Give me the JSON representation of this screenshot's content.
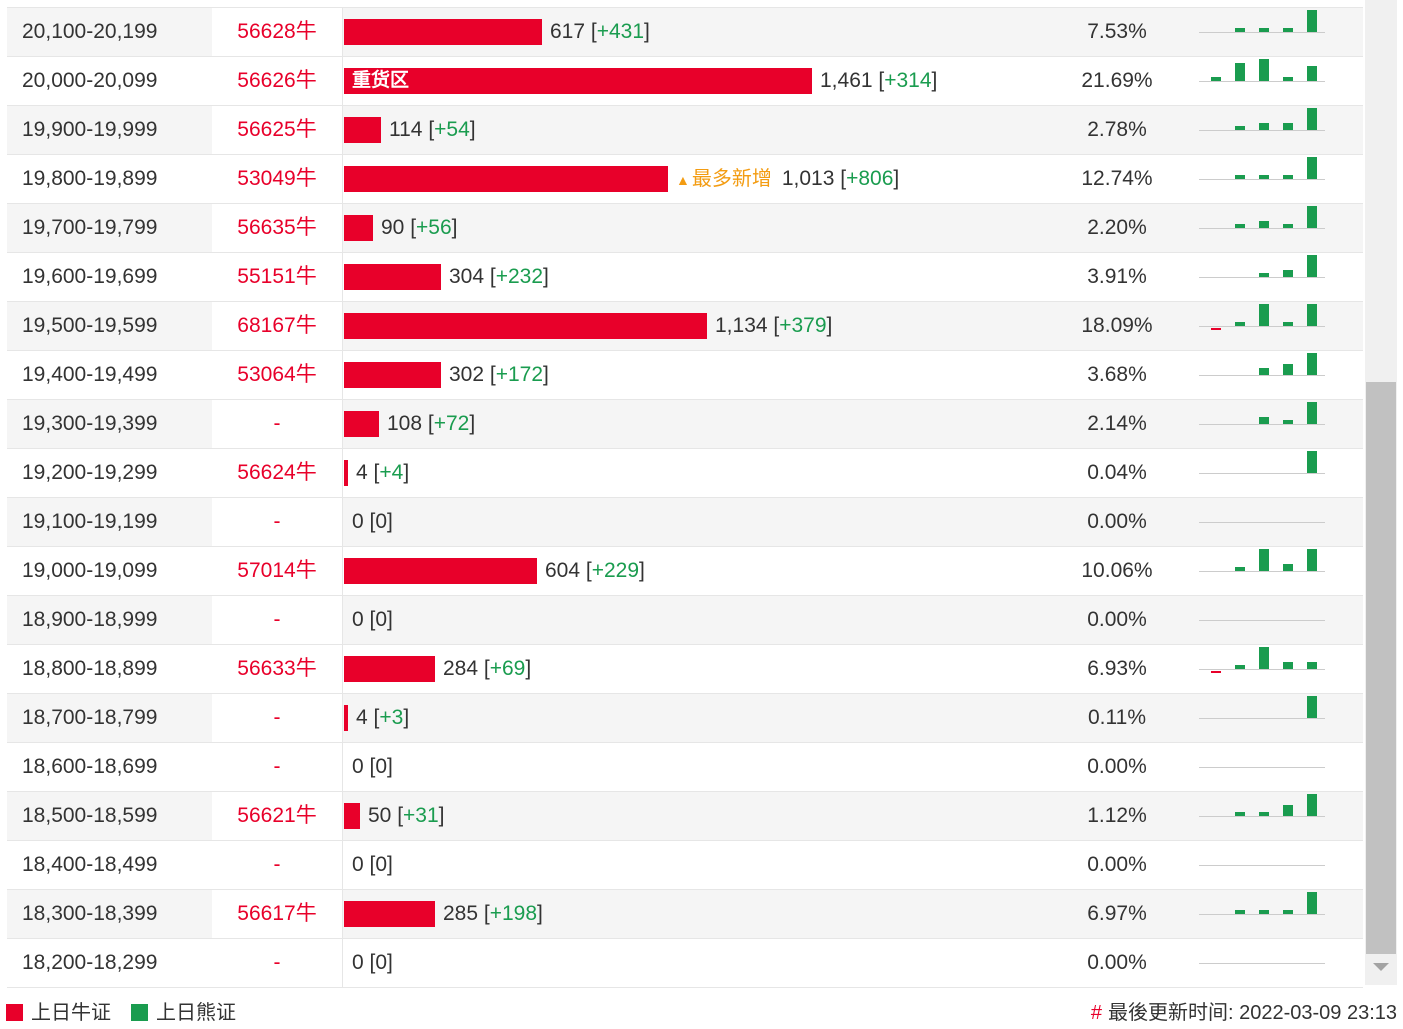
{
  "colors": {
    "bull": "#e8002a",
    "bear": "#1a9c4f",
    "highlight": "#f39c12"
  },
  "rows": [
    {
      "range": "20,100-20,199",
      "code": "56628牛",
      "count": "617",
      "count_value": 617,
      "change": "+431",
      "pct": "7.53%",
      "bar_label": "",
      "tag": "",
      "spark": [
        0,
        1,
        1,
        1,
        6
      ]
    },
    {
      "range": "20,000-20,099",
      "code": "56626牛",
      "count": "1,461",
      "count_value": 1461,
      "change": "+314",
      "pct": "21.69%",
      "bar_label": "重货区",
      "tag": "",
      "spark": [
        1,
        5,
        6,
        1,
        4
      ]
    },
    {
      "range": "19,900-19,999",
      "code": "56625牛",
      "count": "114",
      "count_value": 114,
      "change": "+54",
      "pct": "2.78%",
      "bar_label": "",
      "tag": "",
      "spark": [
        0,
        1,
        2,
        2,
        6
      ]
    },
    {
      "range": "19,800-19,899",
      "code": "53049牛",
      "count": "1,013",
      "count_value": 1013,
      "change": "+806",
      "pct": "12.74%",
      "bar_label": "",
      "tag": "最多新增",
      "spark": [
        0,
        1,
        1,
        1,
        6
      ]
    },
    {
      "range": "19,700-19,799",
      "code": "56635牛",
      "count": "90",
      "count_value": 90,
      "change": "+56",
      "pct": "2.20%",
      "bar_label": "",
      "tag": "",
      "spark": [
        0,
        1,
        2,
        1,
        6
      ]
    },
    {
      "range": "19,600-19,699",
      "code": "55151牛",
      "count": "304",
      "count_value": 304,
      "change": "+232",
      "pct": "3.91%",
      "bar_label": "",
      "tag": "",
      "spark": [
        0,
        0,
        1,
        2,
        6
      ]
    },
    {
      "range": "19,500-19,599",
      "code": "68167牛",
      "count": "1,134",
      "count_value": 1134,
      "change": "+379",
      "pct": "18.09%",
      "bar_label": "",
      "tag": "",
      "spark": [
        -1,
        1,
        6,
        1,
        6
      ]
    },
    {
      "range": "19,400-19,499",
      "code": "53064牛",
      "count": "302",
      "count_value": 302,
      "change": "+172",
      "pct": "3.68%",
      "bar_label": "",
      "tag": "",
      "spark": [
        0,
        0,
        2,
        3,
        6
      ]
    },
    {
      "range": "19,300-19,399",
      "code": "-",
      "count": "108",
      "count_value": 108,
      "change": "+72",
      "pct": "2.14%",
      "bar_label": "",
      "tag": "",
      "spark": [
        0,
        0,
        2,
        1,
        6
      ]
    },
    {
      "range": "19,200-19,299",
      "code": "56624牛",
      "count": "4",
      "count_value": 4,
      "change": "+4",
      "pct": "0.04%",
      "bar_label": "",
      "tag": "",
      "spark": [
        0,
        0,
        0,
        0,
        6
      ]
    },
    {
      "range": "19,100-19,199",
      "code": "-",
      "count": "0",
      "count_value": 0,
      "change": "0",
      "pct": "0.00%",
      "bar_label": "",
      "tag": "",
      "spark": [
        0,
        0,
        0,
        0,
        0
      ]
    },
    {
      "range": "19,000-19,099",
      "code": "57014牛",
      "count": "604",
      "count_value": 604,
      "change": "+229",
      "pct": "10.06%",
      "bar_label": "",
      "tag": "",
      "spark": [
        0,
        1,
        6,
        2,
        6
      ]
    },
    {
      "range": "18,900-18,999",
      "code": "-",
      "count": "0",
      "count_value": 0,
      "change": "0",
      "pct": "0.00%",
      "bar_label": "",
      "tag": "",
      "spark": [
        0,
        0,
        0,
        0,
        0
      ]
    },
    {
      "range": "18,800-18,899",
      "code": "56633牛",
      "count": "284",
      "count_value": 284,
      "change": "+69",
      "pct": "6.93%",
      "bar_label": "",
      "tag": "",
      "spark": [
        -1,
        1,
        6,
        2,
        2
      ]
    },
    {
      "range": "18,700-18,799",
      "code": "-",
      "count": "4",
      "count_value": 4,
      "change": "+3",
      "pct": "0.11%",
      "bar_label": "",
      "tag": "",
      "spark": [
        0,
        0,
        0,
        0,
        6
      ]
    },
    {
      "range": "18,600-18,699",
      "code": "-",
      "count": "0",
      "count_value": 0,
      "change": "0",
      "pct": "0.00%",
      "bar_label": "",
      "tag": "",
      "spark": [
        0,
        0,
        0,
        0,
        0
      ]
    },
    {
      "range": "18,500-18,599",
      "code": "56621牛",
      "count": "50",
      "count_value": 50,
      "change": "+31",
      "pct": "1.12%",
      "bar_label": "",
      "tag": "",
      "spark": [
        0,
        1,
        1,
        3,
        6
      ]
    },
    {
      "range": "18,400-18,499",
      "code": "-",
      "count": "0",
      "count_value": 0,
      "change": "0",
      "pct": "0.00%",
      "bar_label": "",
      "tag": "",
      "spark": [
        0,
        0,
        0,
        0,
        0
      ]
    },
    {
      "range": "18,300-18,399",
      "code": "56617牛",
      "count": "285",
      "count_value": 285,
      "change": "+198",
      "pct": "6.97%",
      "bar_label": "",
      "tag": "",
      "spark": [
        0,
        1,
        1,
        1,
        6
      ]
    },
    {
      "range": "18,200-18,299",
      "code": "-",
      "count": "0",
      "count_value": 0,
      "change": "0",
      "pct": "0.00%",
      "bar_label": "",
      "tag": "",
      "spark": [
        0,
        0,
        0,
        0,
        0
      ]
    }
  ],
  "legend": {
    "bull_label": "上日牛证",
    "bear_label": "上日熊证"
  },
  "footer": {
    "hash": "#",
    "update_label": "最後更新时间: 2022-03-09 23:13"
  }
}
